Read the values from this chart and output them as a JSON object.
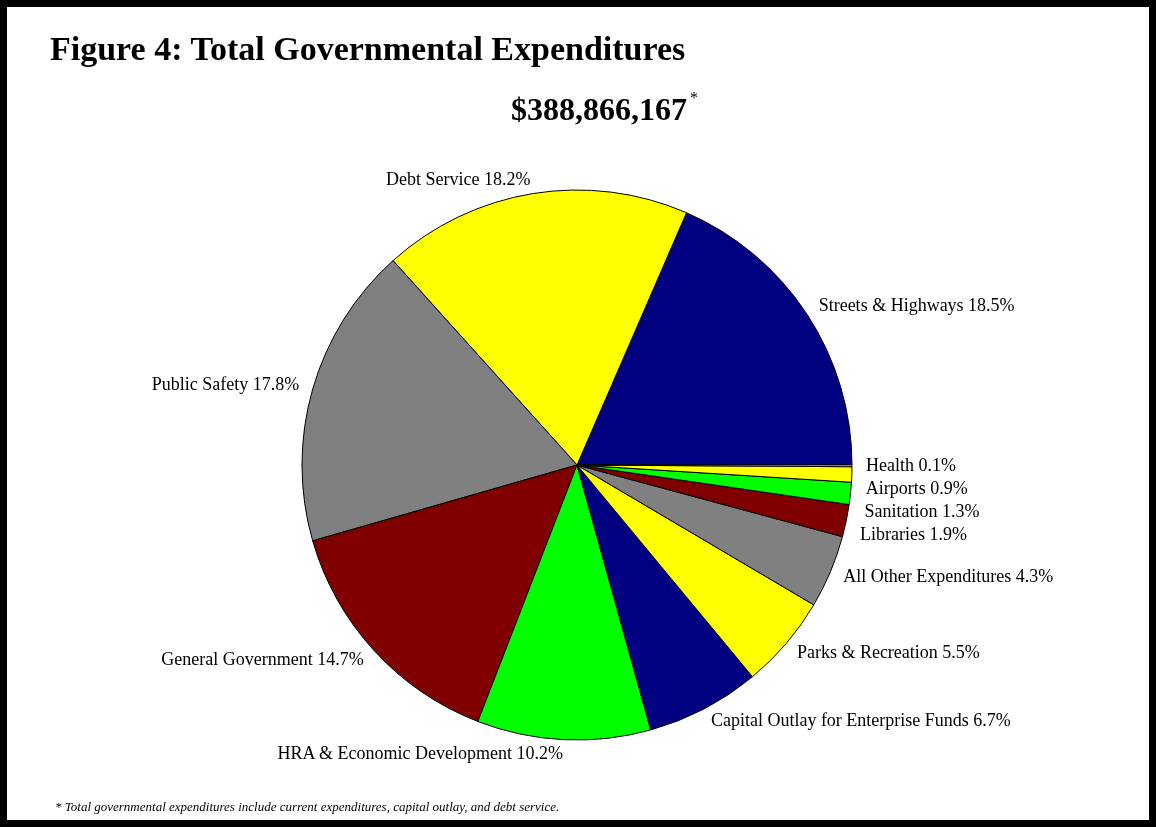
{
  "chart_data": {
    "type": "pie",
    "title": "Figure 4: Total Governmental Expenditures",
    "subtitle": "$388,866,167$^{*}$",
    "categories": [
      "Streets & Highways",
      "Debt Service",
      "Public Safety",
      "General Government",
      "HRA & Economic Development",
      "Capital Outlay for Enterprise Funds",
      "Parks & Recreation",
      "All Other Expenditures",
      "Libraries",
      "Sanitation",
      "Airports",
      "Health"
    ],
    "values": [
      18.5,
      18.2,
      17.8,
      14.7,
      10.2,
      6.7,
      5.5,
      4.3,
      1.9,
      1.3,
      0.9,
      0.1
    ],
    "value_labels": [
      "18.5%",
      "18.2%",
      "17.8%",
      "14.7%",
      "10.2%",
      "6.7%",
      "5.5%",
      "4.3%",
      "1.9%",
      "1.3%",
      "0.9%",
      "0.1%"
    ],
    "colors": [
      "#000080",
      "#ffff00",
      "#808080",
      "#800000",
      "#00ff00",
      "#000080",
      "#ffff00",
      "#808080",
      "#800000",
      "#00ff00",
      "#ffff00",
      "#ffffff"
    ],
    "annotations": [
      "* Total governmental expenditures include current expenditures, capital outlay, and debt service."
    ]
  }
}
